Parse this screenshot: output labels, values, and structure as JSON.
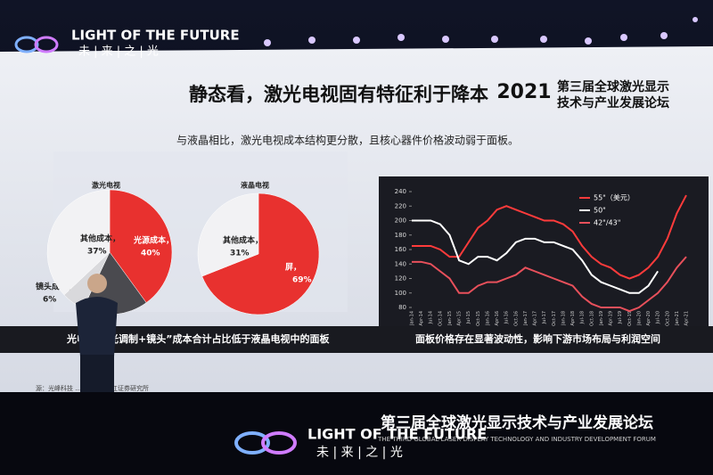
{
  "stage": {
    "logo_text": "LIGHT OF THE FUTURE",
    "logo_sub": "未 | 来 | 之 | 光",
    "banner_title": "第三届全球激光显示技术与产业发展论坛",
    "banner_sub": "THE THIRD GLOBAL LASER DISPLAY TECHNOLOGY AND INDUSTRY DEVELOPMENT FORUM",
    "banner_logo": "LIGHT OF THE FUTURE",
    "banner_logo_sub": "未 | 来 | 之 | 光"
  },
  "slide": {
    "title": "静态看，激光电视固有特征利于降本",
    "year": "2021",
    "forum_line1": "第三届全球激光显示",
    "forum_line2": "技术与产业发展论坛",
    "subtitle": "与液晶相比，激光电视成本结构更分散，且核心器件价格波动弱于面板。",
    "pies": [
      {
        "title": "激光电视",
        "slices": [
          {
            "label": "光源成本，",
            "value": 40,
            "value_label": "40%",
            "color": "#e8312f"
          },
          {
            "label": null,
            "value": 17,
            "value_label": null,
            "color": "#4a4a4f"
          },
          {
            "label": "镜头成本，",
            "value": 6,
            "value_label": "6%",
            "color": "#d9d9dc"
          },
          {
            "label": "其他成本，",
            "value": 37,
            "value_label": "37%",
            "color": "#f2f2f4"
          }
        ]
      },
      {
        "title": "液晶电视",
        "slices": [
          {
            "label": "屏，",
            "value": 69,
            "value_label": "69%",
            "color": "#e8312f"
          },
          {
            "label": "其他成本，",
            "value": 31,
            "value_label": "31%",
            "color": "#f2f2f4"
          }
        ]
      }
    ],
    "left_caption": "光调制+镜头”成本合计占比低于液晶电视中的面板",
    "left_caption_prefix": "光电视",
    "right_caption": "面板价格存在显著波动性，影响下游市场布局与利润空间",
    "source": "源：光峰科技 … Wind，浙江证券研究所",
    "chart_data": {
      "type": "line",
      "categories": [
        "Jan-14",
        "Apr-14",
        "Jul-14",
        "Oct-14",
        "Jan-15",
        "Apr-15",
        "Jul-15",
        "Oct-15",
        "Jan-16",
        "Apr-16",
        "Jul-16",
        "Oct-16",
        "Jan-17",
        "Apr-17",
        "Jul-17",
        "Oct-17",
        "Jan-18",
        "Apr-18",
        "Jul-18",
        "Oct-18",
        "Jan-19",
        "Apr-19",
        "Jul-19",
        "Oct-19",
        "Jan-20",
        "Apr-20",
        "Jul-20",
        "Oct-20",
        "Jan-21",
        "Apr-21"
      ],
      "series": [
        {
          "name": "55\"（美元）",
          "color": "#ff3b3b",
          "values": [
            165,
            165,
            165,
            160,
            150,
            150,
            170,
            190,
            200,
            215,
            220,
            215,
            210,
            205,
            200,
            200,
            195,
            185,
            165,
            150,
            140,
            135,
            125,
            120,
            125,
            135,
            150,
            175,
            210,
            235
          ]
        },
        {
          "name": "50\"",
          "color": "#ffffff",
          "values": [
            200,
            200,
            200,
            195,
            180,
            145,
            140,
            150,
            150,
            145,
            155,
            170,
            175,
            175,
            170,
            170,
            165,
            160,
            145,
            125,
            115,
            110,
            105,
            100,
            100,
            110,
            130,
            null,
            null,
            null
          ]
        },
        {
          "name": "42\"/43\"",
          "color": "#e8505b",
          "values": [
            143,
            143,
            140,
            130,
            120,
            100,
            100,
            110,
            115,
            115,
            120,
            125,
            135,
            130,
            125,
            120,
            115,
            110,
            95,
            85,
            80,
            80,
            80,
            75,
            80,
            90,
            100,
            115,
            135,
            150
          ]
        }
      ],
      "ylim": [
        80,
        240
      ],
      "yticks": [
        80,
        100,
        120,
        140,
        160,
        180,
        200,
        220,
        240
      ]
    }
  }
}
